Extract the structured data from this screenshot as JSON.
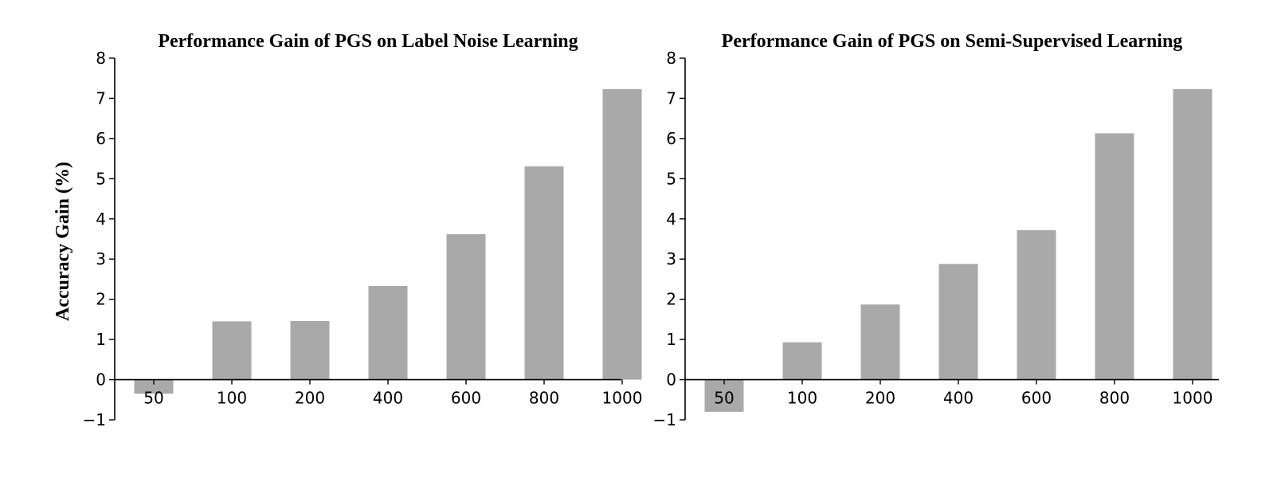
{
  "figure": {
    "ylabel": "Accuracy Gain (%)"
  },
  "chart_data": [
    {
      "type": "bar",
      "title": "Performance Gain of PGS on Label Noise Learning",
      "xlabel": "",
      "ylabel": "Accuracy Gain (%)",
      "categories": [
        "50",
        "100",
        "200",
        "400",
        "600",
        "800",
        "1000"
      ],
      "values": [
        -0.35,
        1.45,
        1.46,
        2.33,
        3.62,
        5.31,
        7.23
      ],
      "ylim": [
        -1,
        8
      ],
      "yticks": [
        "−1",
        "0",
        "1",
        "2",
        "3",
        "4",
        "5",
        "6",
        "7",
        "8"
      ],
      "bar_color": "#a9a9a9",
      "grid": false,
      "legend": "none"
    },
    {
      "type": "bar",
      "title": "Performance Gain of PGS on Semi-Supervised Learning",
      "xlabel": "",
      "ylabel": "",
      "categories": [
        "50",
        "100",
        "200",
        "400",
        "600",
        "800",
        "1000"
      ],
      "values": [
        -0.8,
        0.93,
        1.87,
        2.88,
        3.72,
        6.13,
        7.23
      ],
      "ylim": [
        -1,
        8
      ],
      "yticks": [
        "−1",
        "0",
        "1",
        "2",
        "3",
        "4",
        "5",
        "6",
        "7",
        "8"
      ],
      "bar_color": "#a9a9a9",
      "grid": false,
      "legend": "none"
    }
  ]
}
